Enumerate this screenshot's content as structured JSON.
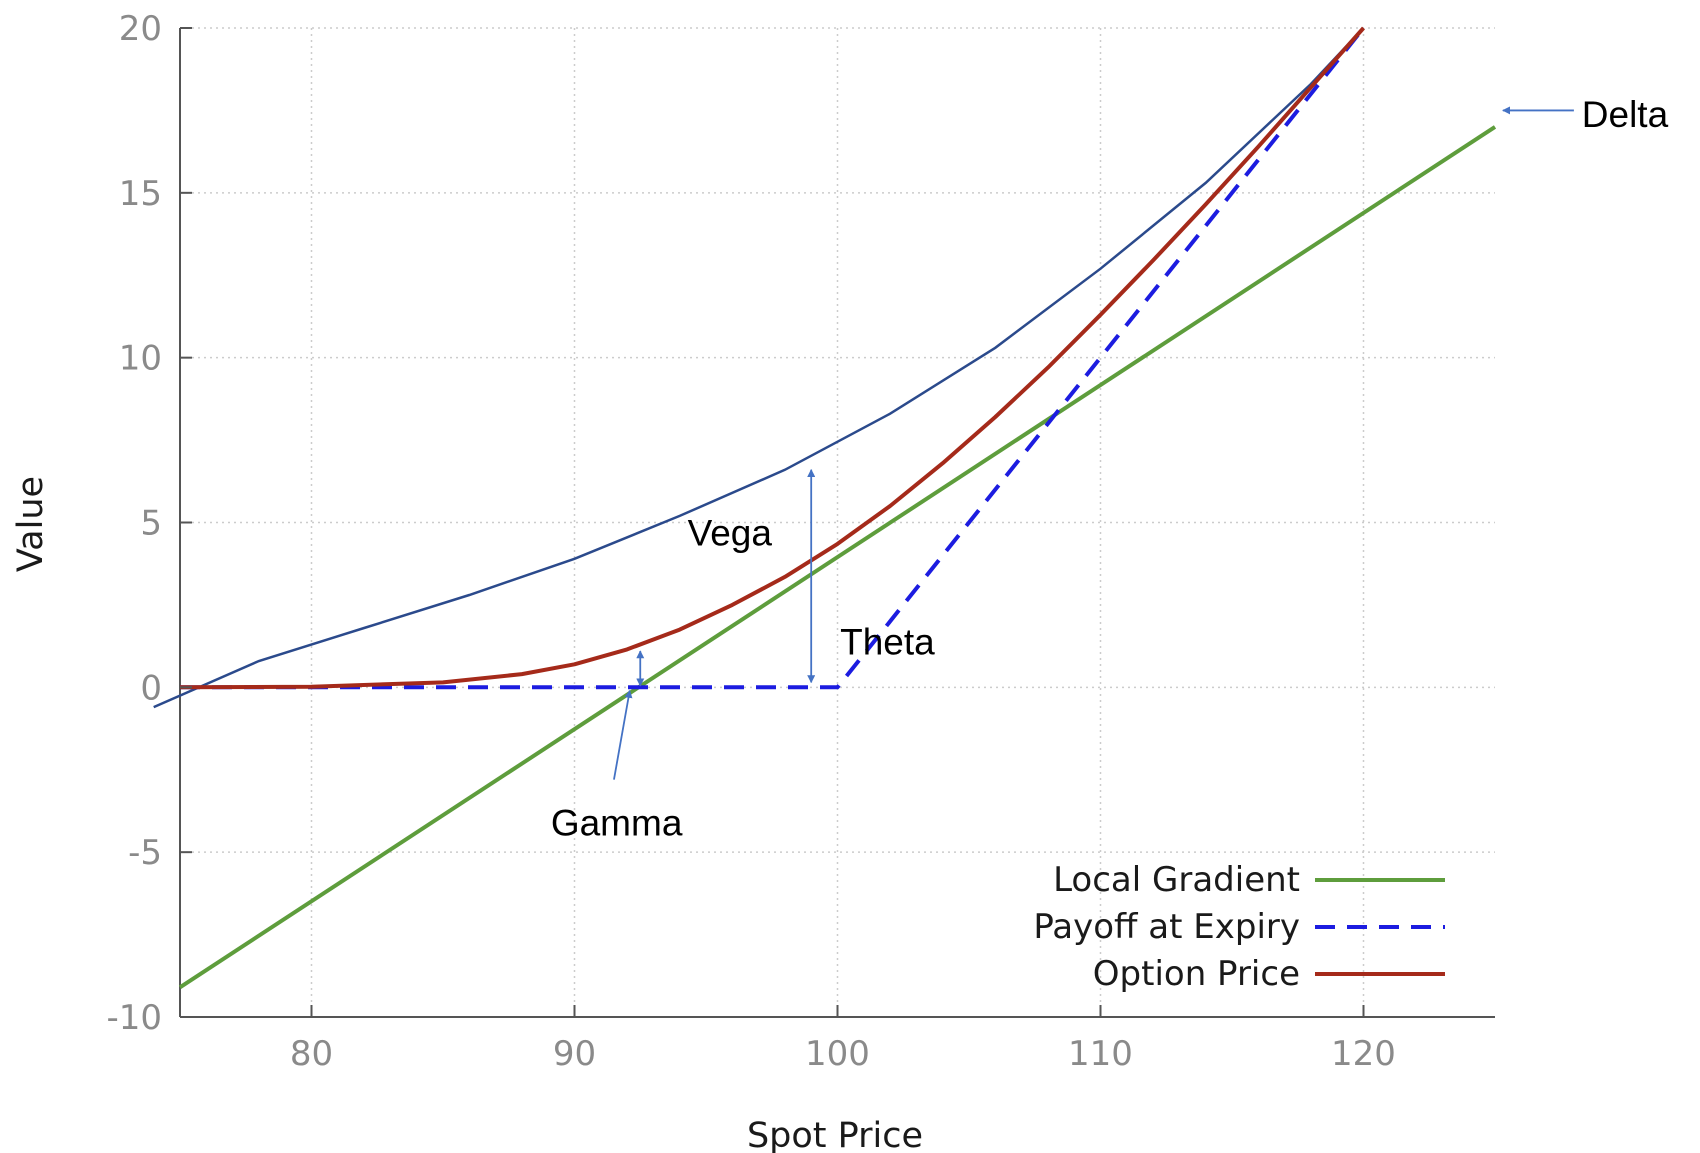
{
  "chart_data": {
    "type": "line",
    "xlabel": "Spot Price",
    "ylabel": "Value",
    "xlim": [
      75,
      125
    ],
    "ylim": [
      -10,
      20
    ],
    "x_ticks": [
      80,
      90,
      100,
      110,
      120
    ],
    "y_ticks": [
      -10,
      -5,
      0,
      5,
      10,
      15,
      20
    ],
    "grid": true,
    "legend_position": "bottom-right",
    "series": [
      {
        "name": "Local Gradient",
        "color": "#5e9d3c",
        "style": "solid",
        "x": [
          75,
          125
        ],
        "y": [
          -9.1,
          17.0
        ]
      },
      {
        "name": "Payoff at Expiry",
        "color": "#1c1ce0",
        "style": "dashed",
        "x": [
          75,
          100,
          120
        ],
        "y": [
          0,
          0,
          20
        ]
      },
      {
        "name": "Option Price",
        "color": "#a52a1a",
        "style": "solid",
        "x": [
          75,
          80,
          85,
          88,
          90,
          92,
          94,
          96,
          98,
          100,
          102,
          104,
          106,
          108,
          110,
          112,
          114,
          116,
          118,
          120
        ],
        "y": [
          0,
          0.02,
          0.15,
          0.4,
          0.7,
          1.15,
          1.75,
          2.5,
          3.35,
          4.35,
          5.5,
          6.8,
          8.2,
          9.7,
          11.3,
          12.95,
          14.65,
          16.4,
          18.2,
          20.0
        ]
      }
    ],
    "annotation_curve": {
      "color": "#2b4a8c",
      "x": [
        74,
        78,
        82,
        86,
        90,
        94,
        98,
        102,
        106,
        110,
        114,
        118,
        120
      ],
      "y": [
        -0.6,
        0.8,
        1.8,
        2.8,
        3.9,
        5.2,
        6.6,
        8.3,
        10.3,
        12.7,
        15.3,
        18.3,
        20.0
      ]
    },
    "annotations": [
      {
        "text": "Delta",
        "x": 128.3,
        "y": 17.0
      },
      {
        "text": "Vega",
        "x": 94.3,
        "y": 4.3
      },
      {
        "text": "Theta",
        "x": 100.1,
        "y": 1.0
      },
      {
        "text": "Gamma",
        "x": 89.1,
        "y": -4.5
      }
    ]
  }
}
